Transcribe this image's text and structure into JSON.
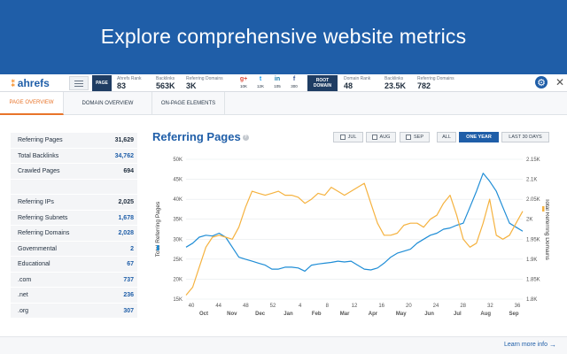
{
  "hero": {
    "title": "Explore comprehensive website metrics"
  },
  "toolbar": {
    "logo": "ahrefs",
    "page_tag": "PAGE",
    "page_stats": [
      {
        "label": "Ahrefs Rank",
        "value": "83"
      },
      {
        "label": "Backlinks",
        "value": "563K"
      },
      {
        "label": "Referring Domains",
        "value": "3K"
      }
    ],
    "social": [
      {
        "icon": "g+",
        "count": "10K",
        "color": "#dd4b39"
      },
      {
        "icon": "t",
        "count": "12K",
        "color": "#1da1f2"
      },
      {
        "icon": "in",
        "count": "105",
        "color": "#0e76a8"
      },
      {
        "icon": "f",
        "count": "300",
        "color": "#3b5998"
      }
    ],
    "root_tag": "ROOT DOMAIN",
    "root_stats": [
      {
        "label": "Domain Rank",
        "value": "48"
      },
      {
        "label": "Backlinks",
        "value": "23.5K"
      },
      {
        "label": "Referring Domains",
        "value": "782"
      }
    ]
  },
  "tabs": [
    "PAGE OVERVIEW",
    "DOMAIN OVERVIEW",
    "ON-PAGE ELEMENTS"
  ],
  "metrics": [
    {
      "label": "Referring Pages",
      "value": "31,629",
      "link": false
    },
    {
      "label": "Total Backlinks",
      "value": "34,762",
      "link": true
    },
    {
      "label": "Crawled Pages",
      "value": "694",
      "link": false
    },
    {
      "label": "",
      "value": "",
      "link": false
    },
    {
      "label": "Referring IPs",
      "value": "2,025",
      "link": false
    },
    {
      "label": "Referring Subnets",
      "value": "1,678",
      "link": true
    },
    {
      "label": "Referring Domains",
      "value": "2,028",
      "link": true
    },
    {
      "label": "Governmental",
      "value": "2",
      "link": true
    },
    {
      "label": "Educational",
      "value": "67",
      "link": true
    },
    {
      "label": ".com",
      "value": "737",
      "link": true
    },
    {
      "label": ".net",
      "value": "236",
      "link": true
    },
    {
      "label": ".org",
      "value": "307",
      "link": true
    }
  ],
  "range": {
    "checkboxes": [
      "JUL",
      "AUG",
      "SEP"
    ],
    "buttons": [
      "ALL",
      "ONE YEAR",
      "LAST 30 DAYS"
    ],
    "active": "ONE YEAR"
  },
  "footer": {
    "learn_more": "Learn more info"
  },
  "chart_data": {
    "type": "line",
    "title": "Referring Pages",
    "ylabel_left": "Total Referring Pages",
    "ylabel_right": "Total Referring Domains",
    "y_left_ticks": [
      "15K",
      "20K",
      "25K",
      "30K",
      "35K",
      "40K",
      "45K",
      "50K"
    ],
    "y_left_lim": [
      15000,
      50000
    ],
    "y_right_ticks": [
      "1.8K",
      "1.85K",
      "1.9K",
      "1.95K",
      "2K",
      "2.05K",
      "2.1K",
      "2.15K"
    ],
    "y_right_lim": [
      1800,
      2150
    ],
    "x_week_ticks": [
      "40",
      "44",
      "48",
      "52",
      "4",
      "8",
      "12",
      "16",
      "20",
      "24",
      "28",
      "32",
      "36"
    ],
    "x_month_ticks": [
      "Oct",
      "Nov",
      "Dec",
      "Jan",
      "Feb",
      "Mar",
      "Apr",
      "May",
      "Jun",
      "Jul",
      "Aug",
      "Sep"
    ],
    "x_weeks": 52,
    "series": [
      {
        "name": "Total Referring Pages",
        "color": "#1f8dd6",
        "axis": "left",
        "values": [
          28000,
          29000,
          30500,
          31000,
          30800,
          31500,
          30500,
          28000,
          25500,
          25000,
          24500,
          24000,
          23500,
          22500,
          22500,
          23000,
          23000,
          22800,
          22000,
          23500,
          23800,
          24000,
          24200,
          24500,
          24300,
          24500,
          23500,
          22500,
          22300,
          22800,
          24000,
          25500,
          26500,
          27000,
          27500,
          29000,
          30000,
          31000,
          31500,
          32500,
          32800,
          33500,
          34000,
          38000,
          42000,
          46500,
          44500,
          42000,
          38000,
          34000,
          33000,
          32000
        ]
      },
      {
        "name": "Total Referring Domains",
        "color": "#f5b23f",
        "axis": "right",
        "values": [
          1810,
          1830,
          1880,
          1930,
          1955,
          1960,
          1955,
          1950,
          1980,
          2030,
          2070,
          2065,
          2060,
          2065,
          2070,
          2060,
          2060,
          2055,
          2040,
          2050,
          2065,
          2060,
          2080,
          2070,
          2060,
          2070,
          2080,
          2090,
          2040,
          1990,
          1960,
          1960,
          1965,
          1985,
          1990,
          1990,
          1980,
          2000,
          2010,
          2040,
          2060,
          2010,
          1950,
          1930,
          1940,
          1990,
          2050,
          1960,
          1950,
          1960,
          1990,
          2020
        ]
      }
    ]
  }
}
